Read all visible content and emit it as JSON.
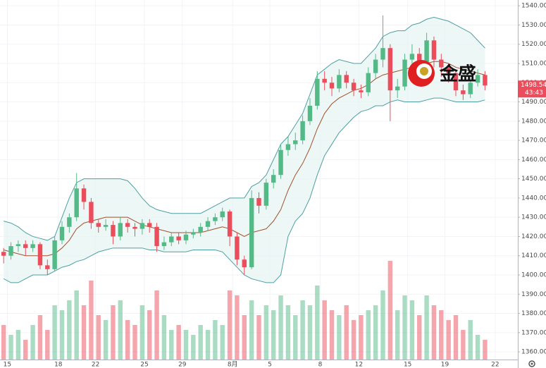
{
  "chart_data": {
    "type": "candlestick",
    "x": [
      0,
      1,
      2,
      3,
      4,
      5,
      6,
      7,
      8,
      9,
      10,
      11,
      12,
      13,
      14,
      15,
      16,
      17,
      18,
      19,
      20,
      21,
      22,
      23,
      24,
      25,
      26,
      27,
      28,
      29,
      30,
      31,
      32,
      33,
      34,
      35,
      36,
      37,
      38,
      39,
      40,
      41,
      42,
      43,
      44,
      45,
      46,
      47,
      48,
      49,
      50,
      51,
      52,
      53,
      54,
      55,
      56,
      57,
      58,
      59,
      60,
      61,
      62,
      63,
      64,
      65,
      66
    ],
    "open": [
      1412,
      1410,
      1415,
      1416,
      1414,
      1416,
      1405,
      1403,
      1418,
      1425,
      1430,
      1445,
      1438,
      1427,
      1425,
      1426,
      1420,
      1427,
      1425,
      1424,
      1427,
      1425,
      1415,
      1417,
      1420,
      1418,
      1421,
      1422,
      1425,
      1428,
      1430,
      1433,
      1420,
      1408,
      1404,
      1440,
      1436,
      1448,
      1452,
      1465,
      1468,
      1470,
      1480,
      1488,
      1502,
      1500,
      1497,
      1504,
      1500,
      1496,
      1495,
      1505,
      1512,
      1518,
      1496,
      1498,
      1512,
      1515,
      1510,
      1522,
      1512,
      1508,
      1505,
      1496,
      1494,
      1500,
      1504
    ],
    "high": [
      1414,
      1417,
      1418,
      1418,
      1418,
      1417,
      1408,
      1420,
      1428,
      1432,
      1453,
      1447,
      1440,
      1429,
      1429,
      1428,
      1430,
      1429,
      1427,
      1429,
      1429,
      1427,
      1420,
      1422,
      1422,
      1423,
      1424,
      1427,
      1430,
      1432,
      1435,
      1434,
      1422,
      1410,
      1444,
      1443,
      1450,
      1455,
      1468,
      1472,
      1474,
      1483,
      1492,
      1506,
      1506,
      1503,
      1507,
      1506,
      1502,
      1499,
      1508,
      1515,
      1535,
      1520,
      1502,
      1515,
      1520,
      1518,
      1526,
      1524,
      1515,
      1510,
      1507,
      1499,
      1503,
      1507,
      1506
    ],
    "low": [
      1406,
      1408,
      1412,
      1410,
      1412,
      1403,
      1400,
      1402,
      1416,
      1422,
      1428,
      1434,
      1424,
      1422,
      1423,
      1416,
      1418,
      1422,
      1420,
      1421,
      1422,
      1412,
      1413,
      1415,
      1416,
      1416,
      1419,
      1420,
      1423,
      1426,
      1428,
      1415,
      1405,
      1400,
      1403,
      1432,
      1434,
      1445,
      1450,
      1462,
      1465,
      1468,
      1478,
      1486,
      1496,
      1493,
      1495,
      1497,
      1493,
      1492,
      1493,
      1502,
      1508,
      1480,
      1492,
      1496,
      1508,
      1505,
      1508,
      1508,
      1503,
      1500,
      1493,
      1491,
      1492,
      1498,
      1496
    ],
    "close": [
      1410,
      1415,
      1416,
      1414,
      1416,
      1405,
      1403,
      1418,
      1425,
      1430,
      1445,
      1438,
      1427,
      1425,
      1426,
      1420,
      1427,
      1425,
      1424,
      1427,
      1425,
      1415,
      1417,
      1420,
      1418,
      1421,
      1422,
      1425,
      1428,
      1430,
      1433,
      1420,
      1408,
      1404,
      1440,
      1436,
      1448,
      1452,
      1465,
      1468,
      1470,
      1480,
      1488,
      1502,
      1500,
      1497,
      1504,
      1500,
      1496,
      1495,
      1505,
      1512,
      1518,
      1496,
      1498,
      1512,
      1515,
      1510,
      1522,
      1512,
      1508,
      1505,
      1496,
      1494,
      1500,
      1504,
      1498.54
    ],
    "volume": [
      35,
      25,
      30,
      20,
      35,
      45,
      30,
      55,
      50,
      60,
      70,
      55,
      80,
      45,
      40,
      55,
      60,
      40,
      35,
      55,
      50,
      70,
      45,
      30,
      35,
      30,
      25,
      35,
      30,
      40,
      35,
      70,
      65,
      45,
      60,
      45,
      55,
      50,
      65,
      55,
      45,
      60,
      55,
      75,
      60,
      50,
      45,
      55,
      40,
      45,
      50,
      55,
      70,
      100,
      50,
      65,
      60,
      45,
      65,
      55,
      50,
      40,
      45,
      30,
      40,
      25,
      20
    ],
    "volume_lim": [
      0,
      100
    ],
    "bands": {
      "upper": [
        1428,
        1427,
        1425,
        1422,
        1420,
        1419,
        1418,
        1420,
        1430,
        1440,
        1448,
        1450,
        1450,
        1450,
        1450,
        1450,
        1450,
        1449,
        1445,
        1440,
        1436,
        1434,
        1433,
        1432,
        1432,
        1432,
        1432,
        1432,
        1434,
        1436,
        1438,
        1440,
        1440,
        1440,
        1446,
        1448,
        1452,
        1460,
        1468,
        1472,
        1478,
        1484,
        1494,
        1504,
        1507,
        1510,
        1512,
        1511,
        1510,
        1510,
        1514,
        1518,
        1524,
        1526,
        1527,
        1527,
        1530,
        1531,
        1533,
        1534,
        1533,
        1532,
        1530,
        1528,
        1526,
        1522,
        1518
      ],
      "middle": [
        1413,
        1412,
        1411,
        1410,
        1410,
        1410,
        1410,
        1411,
        1414,
        1418,
        1424,
        1427,
        1428,
        1429,
        1430,
        1430,
        1430,
        1430,
        1428,
        1426,
        1425,
        1424,
        1423,
        1422,
        1422,
        1422,
        1422,
        1422,
        1423,
        1424,
        1425,
        1424,
        1422,
        1420,
        1422,
        1423,
        1424,
        1428,
        1434,
        1444,
        1452,
        1458,
        1466,
        1476,
        1484,
        1489,
        1492,
        1494,
        1496,
        1497,
        1499,
        1502,
        1504,
        1505,
        1506,
        1507,
        1508,
        1509,
        1510,
        1511,
        1511,
        1510,
        1508,
        1507,
        1506,
        1505,
        1504
      ],
      "lower": [
        1398,
        1396,
        1396,
        1398,
        1400,
        1400,
        1400,
        1402,
        1404,
        1405,
        1407,
        1408,
        1410,
        1412,
        1413,
        1414,
        1414,
        1414,
        1414,
        1414,
        1413,
        1413,
        1412,
        1412,
        1412,
        1412,
        1413,
        1413,
        1413,
        1413,
        1412,
        1408,
        1404,
        1400,
        1398,
        1397,
        1396,
        1396,
        1400,
        1420,
        1428,
        1432,
        1440,
        1452,
        1462,
        1468,
        1474,
        1478,
        1482,
        1485,
        1486,
        1488,
        1488,
        1490,
        1491,
        1490,
        1490,
        1490,
        1491,
        1492,
        1492,
        1491,
        1490,
        1490,
        1490,
        1490,
        1491
      ]
    },
    "up_color": "#53b987",
    "down_color": "#eb4d5c",
    "band_color": "#4e9fa3",
    "band_fill": "#e6f4f2",
    "middle_color": "#a0522d",
    "xlim": [
      -0.5,
      70.5
    ],
    "xticks": [
      {
        "value": 0.5,
        "label": "15"
      },
      {
        "value": 7.5,
        "label": "18"
      },
      {
        "value": 12.6,
        "label": "22"
      },
      {
        "value": 19.3,
        "label": "25"
      },
      {
        "value": 24.5,
        "label": "29"
      },
      {
        "value": 31.4,
        "label": "8月"
      },
      {
        "value": 36.5,
        "label": "5"
      },
      {
        "value": 43.4,
        "label": "8"
      },
      {
        "value": 48.7,
        "label": "12"
      },
      {
        "value": 55.4,
        "label": "15"
      },
      {
        "value": 60.5,
        "label": "19"
      },
      {
        "value": 67.4,
        "label": "22"
      }
    ],
    "ylim": [
      1356,
      1543
    ],
    "yticks": [
      {
        "value": 1360,
        "label": "1360.00"
      },
      {
        "value": 1370,
        "label": "1370.00"
      },
      {
        "value": 1380,
        "label": "1380.00"
      },
      {
        "value": 1390,
        "label": "1390.00"
      },
      {
        "value": 1400,
        "label": "1400.00"
      },
      {
        "value": 1410,
        "label": "1410.00"
      },
      {
        "value": 1420,
        "label": "1420.00"
      },
      {
        "value": 1430,
        "label": "1430.00"
      },
      {
        "value": 1440,
        "label": "1440.00"
      },
      {
        "value": 1450,
        "label": "1450.00"
      },
      {
        "value": 1460,
        "label": "1460.00"
      },
      {
        "value": 1470,
        "label": "1470.00"
      },
      {
        "value": 1480,
        "label": "1480.00"
      },
      {
        "value": 1490,
        "label": "1490.00"
      },
      {
        "value": 1500,
        "label": "1500.00"
      },
      {
        "value": 1510,
        "label": "1510.00"
      },
      {
        "value": 1520,
        "label": "1520.00"
      },
      {
        "value": 1530,
        "label": "1530.00"
      },
      {
        "value": 1540,
        "label": "1540.00"
      }
    ],
    "grid": true,
    "countdown": "43:43",
    "watermark": "金盛"
  }
}
